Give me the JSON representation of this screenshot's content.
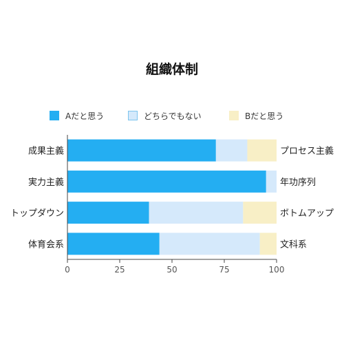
{
  "chart_data": {
    "type": "bar",
    "orientation": "horizontal",
    "stacked": true,
    "title": "組織体制",
    "categories_left": [
      "成果主義",
      "実力主義",
      "トップダウン",
      "体育会系"
    ],
    "categories_right": [
      "プロセス主義",
      "年功序列",
      "ボトムアップ",
      "文科系"
    ],
    "series": [
      {
        "name": "Aだと思う",
        "values": [
          71,
          95,
          39,
          44
        ],
        "color": "#24aef2"
      },
      {
        "name": "どちらでもない",
        "values": [
          15,
          5,
          45,
          48
        ],
        "color": "#d5e9fb"
      },
      {
        "name": "Bだと思う",
        "values": [
          14,
          0,
          16,
          8
        ],
        "color": "#f8efc6"
      }
    ],
    "xlim": [
      0,
      100
    ],
    "xticks": [
      0,
      25,
      50,
      75,
      100
    ],
    "tick_labels": [
      "0",
      "25",
      "50",
      "75",
      "100"
    ],
    "legend_position": "top",
    "grid": false
  }
}
